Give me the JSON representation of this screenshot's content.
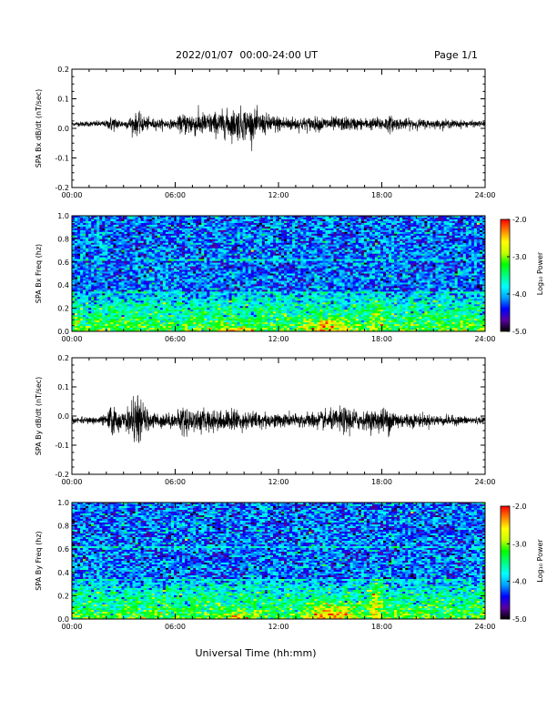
{
  "header": {
    "title": "2022/01/07  00:00-24:00 UT",
    "page": "Page 1/1"
  },
  "colors": {
    "trace": "#000000",
    "colormap": [
      "#000000",
      "#5a00a0",
      "#0000ff",
      "#00a0ff",
      "#00ffff",
      "#00ff80",
      "#00ff00",
      "#c8ff00",
      "#ffff00",
      "#ff8000",
      "#ff0000"
    ]
  },
  "chart_data": [
    {
      "type": "line",
      "ylabel": "SPA Bx dB/dt (nT/sec)",
      "xlabel": "",
      "xlim_hours": [
        0,
        24
      ],
      "ylim": [
        -0.2,
        0.2
      ],
      "x_ticks": [
        "00:00",
        "06:00",
        "12:00",
        "18:00",
        "24:00"
      ],
      "y_ticks": [
        "0.2",
        "0.1",
        "0.0",
        "-0.1",
        "-0.2"
      ],
      "series": [
        {
          "x_hours": [
            0,
            1,
            2,
            2.3,
            3,
            3.8,
            4.5,
            6,
            6.5,
            7,
            8,
            9,
            9.5,
            10,
            10.5,
            11,
            12,
            13,
            14,
            15,
            16,
            17,
            18,
            18.5,
            19,
            20,
            21,
            22,
            23,
            24
          ],
          "baseline": [
            0.015,
            0.015,
            0.015,
            0.015,
            0.015,
            0.015,
            0.015,
            0.015,
            0.015,
            0.015,
            0.015,
            0.015,
            0.015,
            0.015,
            0.015,
            0.015,
            0.015,
            0.015,
            0.015,
            0.015,
            0.015,
            0.015,
            0.015,
            0.015,
            0.015,
            0.015,
            0.015,
            0.015,
            0.015,
            0.015
          ],
          "envelope": [
            0.008,
            0.01,
            0.012,
            0.03,
            0.012,
            0.04,
            0.02,
            0.015,
            0.04,
            0.045,
            0.04,
            0.05,
            0.055,
            0.06,
            0.05,
            0.04,
            0.03,
            0.025,
            0.025,
            0.025,
            0.025,
            0.02,
            0.025,
            0.03,
            0.02,
            0.018,
            0.015,
            0.015,
            0.012,
            0.01
          ]
        }
      ]
    },
    {
      "type": "heatmap",
      "ylabel": "SPA Bx Freq (hz)",
      "colorbar_label": "Log₁₀ Power",
      "xlim_hours": [
        0,
        24
      ],
      "ylim": [
        0.0,
        1.0
      ],
      "x_ticks": [
        "00:00",
        "06:00",
        "12:00",
        "18:00",
        "24:00"
      ],
      "y_ticks": [
        "1.0",
        "0.8",
        "0.6",
        "0.4",
        "0.2",
        "0.0"
      ],
      "colorbar_range": [
        -5.0,
        -2.0
      ],
      "colorbar_ticks": [
        "-2.0",
        "-3.0",
        "-4.0",
        "-5.0"
      ],
      "background_log_power": -4.2,
      "low_freq_log_power": -3.2,
      "enhancements": [
        {
          "t_start": 8,
          "t_end": 11,
          "f_max": 0.05,
          "log_power": -2.4
        },
        {
          "t_start": 13,
          "t_end": 17,
          "f_max": 0.15,
          "log_power": -2.6
        },
        {
          "t_start": 17,
          "t_end": 18.3,
          "f_max": 0.35,
          "log_power": -3.0
        }
      ]
    },
    {
      "type": "line",
      "ylabel": "SPA By dB/dt (nT/sec)",
      "xlabel": "",
      "xlim_hours": [
        0,
        24
      ],
      "ylim": [
        -0.2,
        0.2
      ],
      "x_ticks": [
        "00:00",
        "06:00",
        "12:00",
        "18:00",
        "24:00"
      ],
      "y_ticks": [
        "0.2",
        "0.1",
        "0.0",
        "-0.1",
        "-0.2"
      ],
      "series": [
        {
          "x_hours": [
            0,
            1,
            2,
            2.3,
            3,
            3.8,
            4.5,
            6,
            6.5,
            7,
            8,
            9,
            9.5,
            10,
            10.5,
            11,
            12,
            13,
            14,
            15,
            16,
            17,
            18,
            18.5,
            19,
            20,
            21,
            22,
            23,
            24
          ],
          "baseline": [
            -0.015,
            -0.015,
            -0.015,
            -0.015,
            -0.015,
            -0.015,
            -0.015,
            -0.015,
            -0.015,
            -0.015,
            -0.015,
            -0.015,
            -0.015,
            -0.015,
            -0.015,
            -0.015,
            -0.015,
            -0.015,
            -0.015,
            -0.015,
            -0.015,
            -0.015,
            -0.015,
            -0.015,
            -0.015,
            -0.015,
            -0.015,
            -0.015,
            -0.015,
            -0.015
          ],
          "envelope": [
            0.01,
            0.012,
            0.02,
            0.06,
            0.025,
            0.09,
            0.03,
            0.025,
            0.06,
            0.04,
            0.04,
            0.035,
            0.045,
            0.03,
            0.035,
            0.03,
            0.025,
            0.025,
            0.03,
            0.035,
            0.05,
            0.03,
            0.045,
            0.05,
            0.03,
            0.025,
            0.02,
            0.018,
            0.015,
            0.012
          ]
        }
      ]
    },
    {
      "type": "heatmap",
      "ylabel": "SPA By Freq (hz)",
      "xlabel": "Universal Time (hh:mm)",
      "colorbar_label": "Log₁₀ Power",
      "xlim_hours": [
        0,
        24
      ],
      "ylim": [
        0.0,
        1.0
      ],
      "x_ticks": [
        "00:00",
        "06:00",
        "12:00",
        "18:00",
        "24:00"
      ],
      "y_ticks": [
        "1.0",
        "0.8",
        "0.6",
        "0.4",
        "0.2",
        "0.0"
      ],
      "colorbar_range": [
        -5.0,
        -2.0
      ],
      "colorbar_ticks": [
        "-2.0",
        "-3.0",
        "-4.0",
        "-5.0"
      ],
      "background_log_power": -4.2,
      "low_freq_log_power": -3.2,
      "enhancements": [
        {
          "t_start": 8,
          "t_end": 11,
          "f_max": 0.08,
          "log_power": -2.8
        },
        {
          "t_start": 13,
          "t_end": 17,
          "f_max": 0.18,
          "log_power": -2.5
        },
        {
          "t_start": 17,
          "t_end": 18.3,
          "f_max": 0.4,
          "log_power": -2.8
        }
      ]
    }
  ]
}
